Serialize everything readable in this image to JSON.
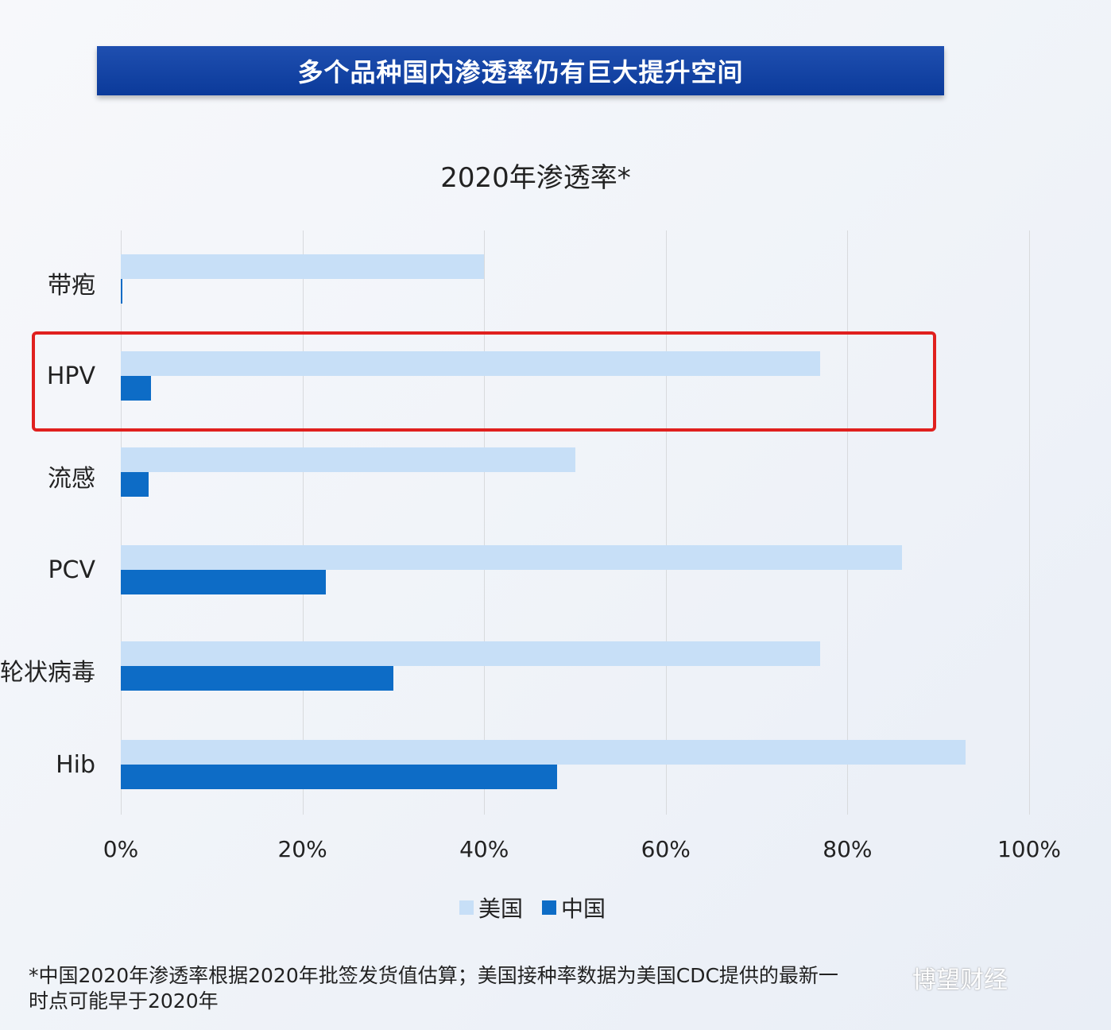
{
  "banner": {
    "title": "多个品种国内渗透率仍有巨大提升空间"
  },
  "chart": {
    "title": "2020年渗透率*"
  },
  "categories": [
    "带疱",
    "HPV",
    "流感",
    "PCV",
    "轮状病毒",
    "Hib"
  ],
  "x_ticks": [
    "0%",
    "20%",
    "40%",
    "60%",
    "80%",
    "100%"
  ],
  "legend": [
    {
      "label": "美国",
      "color": "#c7dff7"
    },
    {
      "label": "中国",
      "color": "#0d6cc6"
    }
  ],
  "highlight": {
    "category": "HPV",
    "color": "#e0201e"
  },
  "footnote": {
    "line1": "*中国2020年渗透率根据2020年批签发货值估算；美国接种率数据为美国CDC提供的最新一",
    "line2": "时点可能早于2020年"
  },
  "watermark": "博望财经",
  "chart_data": {
    "type": "bar",
    "orientation": "horizontal",
    "title": "2020年渗透率*",
    "categories": [
      "带疱",
      "HPV",
      "流感",
      "PCV",
      "轮状病毒",
      "Hib"
    ],
    "series": [
      {
        "name": "美国",
        "color": "#c7dff7",
        "values": [
          40,
          77,
          50,
          86,
          77,
          93
        ]
      },
      {
        "name": "中国",
        "color": "#0d6cc6",
        "values": [
          0.1,
          3.3,
          3.1,
          22.6,
          30,
          48
        ]
      }
    ],
    "xlabel": "",
    "ylabel": "",
    "xlim": [
      0,
      100
    ],
    "x_tick_labels": [
      "0%",
      "20%",
      "40%",
      "60%",
      "80%",
      "100%"
    ],
    "grid": true,
    "legend_position": "bottom"
  }
}
